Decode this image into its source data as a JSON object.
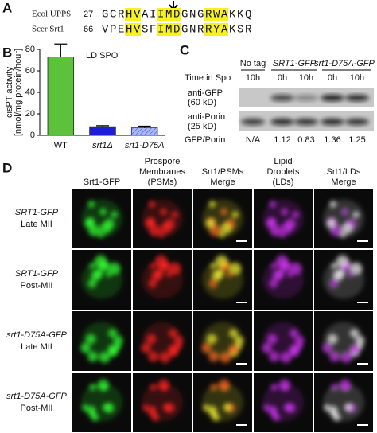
{
  "panel_a": {
    "label": "A",
    "rows": [
      {
        "name": "Ecol UPPS",
        "start": "27",
        "segments": [
          {
            "text": "GCR",
            "hl": false
          },
          {
            "text": "HV",
            "hl": true
          },
          {
            "text": "AI",
            "hl": false
          },
          {
            "text": "IMD",
            "hl": true
          },
          {
            "text": "GNG",
            "hl": false
          },
          {
            "text": "RWA",
            "hl": true
          },
          {
            "text": "KKQ",
            "hl": false
          }
        ]
      },
      {
        "name": "Scer Srt1",
        "start": "66",
        "segments": [
          {
            "text": "VPE",
            "hl": false
          },
          {
            "text": "HV",
            "hl": true
          },
          {
            "text": "SF",
            "hl": false
          },
          {
            "text": "IMD",
            "hl": true
          },
          {
            "text": "GNR",
            "hl": false
          },
          {
            "text": "RYA",
            "hl": true
          },
          {
            "text": "KSR",
            "hl": false
          }
        ]
      }
    ]
  },
  "chart_data": {
    "type": "bar",
    "label": "B",
    "annotation": "LD SPO",
    "ylabel": [
      "cisPT activity",
      "[nmol/mg protein/hour]"
    ],
    "categories": [
      "WT",
      "srt1Δ",
      "srt1-D75A"
    ],
    "values": [
      73,
      8,
      7
    ],
    "errors": [
      12,
      1,
      1.5
    ],
    "colors": [
      "#5cc23a",
      "#1d1dd8",
      "#aab9f2"
    ],
    "ylim": [
      0,
      80
    ],
    "yticks": [
      0,
      20,
      40,
      60,
      80
    ]
  },
  "panel_c": {
    "label": "C",
    "groups": [
      "No tag",
      "SRT1-GFP",
      "srt1-D75A-GFP"
    ],
    "time_label": "Time in Spo",
    "times": [
      "10h",
      "0h",
      "10h",
      "0h",
      "10h"
    ],
    "blots": [
      [
        "anti-GFP",
        "(60 kD)"
      ],
      [
        "anti-Porin",
        "(25 kD)"
      ]
    ],
    "ratio_label": "GFP/Porin",
    "ratios": [
      "N/A",
      "1.12",
      "0.83",
      "1.36",
      "1.25"
    ]
  },
  "panel_d": {
    "label": "D",
    "columns": [
      [
        "Srt1-GFP"
      ],
      [
        "Prospore",
        "Membranes",
        "(PSMs)"
      ],
      [
        "Srt1/PSMs",
        "Merge"
      ],
      [
        "Lipid",
        "Droplets",
        "(LDs)"
      ],
      [
        "Srt1/LDs",
        "Merge"
      ]
    ],
    "rows": [
      [
        "SRT1-GFP",
        "Late MII"
      ],
      [
        "SRT1-GFP",
        "Post-MII"
      ],
      [
        "srt1-D75A-GFP",
        "Late MII"
      ],
      [
        "srt1-D75A-GFP",
        "Post-MII"
      ]
    ]
  }
}
